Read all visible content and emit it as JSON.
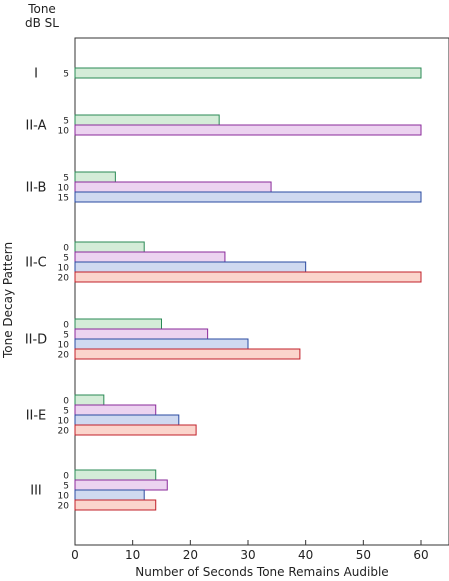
{
  "chart_data": {
    "type": "bar",
    "orientation": "horizontal",
    "xlabel": "Number of Seconds Tone Remains Audible",
    "ylabel": "Tone Decay Pattern",
    "legend_title_line1": "Tone",
    "legend_title_line2": "dB SL",
    "xlim": [
      0,
      65
    ],
    "xticks": [
      0,
      10,
      20,
      30,
      40,
      50,
      60
    ],
    "grid": false,
    "level_colors": {
      "0": {
        "fill": "#d4ecd8",
        "stroke": "#2a8a55"
      },
      "5": {
        "fill": "#ecd3f0",
        "stroke": "#8a2a9a"
      },
      "10": {
        "fill": "#cfd9f0",
        "stroke": "#2a4aa0"
      },
      "15": {
        "fill": "#cfd9f0",
        "stroke": "#2a4aa0"
      },
      "20": {
        "fill": "#fbd5cc",
        "stroke": "#c0202a"
      }
    },
    "groups": [
      {
        "name": "I",
        "bars": [
          {
            "level": "5",
            "color_key": "0",
            "value": 60
          }
        ]
      },
      {
        "name": "II-A",
        "bars": [
          {
            "level": "5",
            "color_key": "0",
            "value": 25
          },
          {
            "level": "10",
            "color_key": "5",
            "value": 60
          }
        ]
      },
      {
        "name": "II-B",
        "bars": [
          {
            "level": "5",
            "color_key": "0",
            "value": 7
          },
          {
            "level": "10",
            "color_key": "5",
            "value": 34
          },
          {
            "level": "15",
            "color_key": "10",
            "value": 60
          }
        ]
      },
      {
        "name": "II-C",
        "bars": [
          {
            "level": "0",
            "color_key": "0",
            "value": 12
          },
          {
            "level": "5",
            "color_key": "5",
            "value": 26
          },
          {
            "level": "10",
            "color_key": "10",
            "value": 40
          },
          {
            "level": "20",
            "color_key": "20",
            "value": 60
          }
        ]
      },
      {
        "name": "II-D",
        "bars": [
          {
            "level": "0",
            "color_key": "0",
            "value": 15
          },
          {
            "level": "5",
            "color_key": "5",
            "value": 23
          },
          {
            "level": "10",
            "color_key": "10",
            "value": 30
          },
          {
            "level": "20",
            "color_key": "20",
            "value": 39
          }
        ]
      },
      {
        "name": "II-E",
        "bars": [
          {
            "level": "0",
            "color_key": "0",
            "value": 5
          },
          {
            "level": "5",
            "color_key": "5",
            "value": 14
          },
          {
            "level": "10",
            "color_key": "10",
            "value": 18
          },
          {
            "level": "20",
            "color_key": "20",
            "value": 21
          }
        ]
      },
      {
        "name": "III",
        "bars": [
          {
            "level": "0",
            "color_key": "0",
            "value": 14
          },
          {
            "level": "5",
            "color_key": "5",
            "value": 16
          },
          {
            "level": "10",
            "color_key": "10",
            "value": 12
          },
          {
            "level": "20",
            "color_key": "20",
            "value": 14
          }
        ]
      }
    ]
  }
}
